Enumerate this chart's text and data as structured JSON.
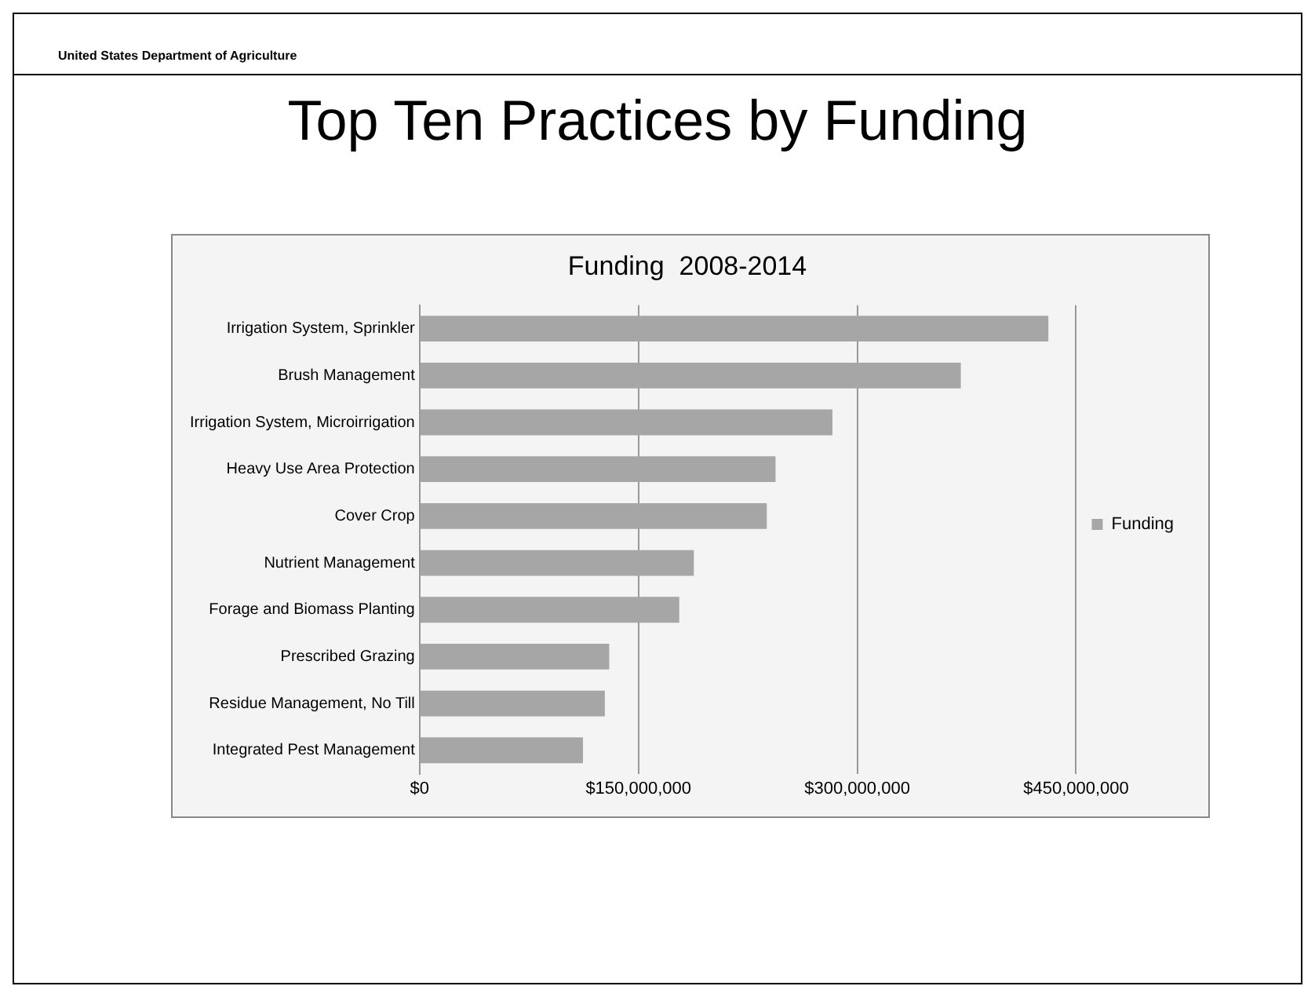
{
  "chart_data": {
    "type": "bar",
    "orientation": "horizontal",
    "title": "Funding  2008-2014",
    "subtitle": "Top Ten Practices by Funding",
    "annotations": [
      "United States Department of Agriculture"
    ],
    "categories": [
      "Irrigation System, Sprinkler",
      "Brush Management",
      "Irrigation System, Microirrigation",
      "Heavy Use Area Protection",
      "Cover Crop",
      "Nutrient Management",
      "Forage and Biomass Planting",
      "Prescribed Grazing",
      "Residue Management, No Till",
      "Integrated Pest Management"
    ],
    "series": [
      {
        "name": "Funding",
        "color": "#a6a6a6",
        "values": [
          431000000,
          371000000,
          283000000,
          244000000,
          238000000,
          188000000,
          178000000,
          130000000,
          127000000,
          112000000
        ]
      }
    ],
    "xlim": [
      0,
      450000000
    ],
    "xticks": [
      {
        "value": 0,
        "label": "$0"
      },
      {
        "value": 150000000,
        "label": "$150,000,000"
      },
      {
        "value": 300000000,
        "label": "$300,000,000"
      },
      {
        "value": 450000000,
        "label": "$450,000,000"
      }
    ],
    "grid": "x",
    "legend": "right"
  }
}
